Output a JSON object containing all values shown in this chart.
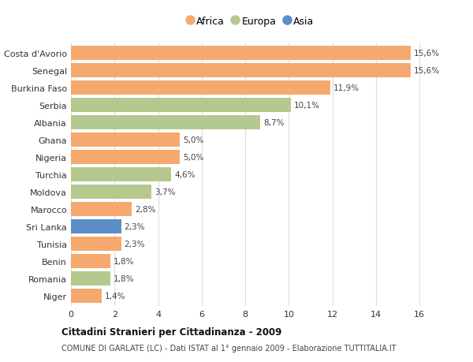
{
  "categories": [
    "Niger",
    "Romania",
    "Benin",
    "Tunisia",
    "Sri Lanka",
    "Marocco",
    "Moldova",
    "Turchia",
    "Nigeria",
    "Ghana",
    "Albania",
    "Serbia",
    "Burkina Faso",
    "Senegal",
    "Costa d'Avorio"
  ],
  "values": [
    1.4,
    1.8,
    1.8,
    2.3,
    2.3,
    2.8,
    3.7,
    4.6,
    5.0,
    5.0,
    8.7,
    10.1,
    11.9,
    15.6,
    15.6
  ],
  "labels": [
    "1,4%",
    "1,8%",
    "1,8%",
    "2,3%",
    "2,3%",
    "2,8%",
    "3,7%",
    "4,6%",
    "5,0%",
    "5,0%",
    "8,7%",
    "10,1%",
    "11,9%",
    "15,6%",
    "15,6%"
  ],
  "colors": [
    "#f5a96e",
    "#b5c98e",
    "#f5a96e",
    "#f5a96e",
    "#5b8dc9",
    "#f5a96e",
    "#b5c98e",
    "#b5c98e",
    "#f5a96e",
    "#f5a96e",
    "#b5c98e",
    "#b5c98e",
    "#f5a96e",
    "#f5a96e",
    "#f5a96e"
  ],
  "legend_labels": [
    "Africa",
    "Europa",
    "Asia"
  ],
  "legend_colors": [
    "#f5a96e",
    "#b5c98e",
    "#5b8dc9"
  ],
  "title": "Cittadini Stranieri per Cittadinanza - 2009",
  "subtitle": "COMUNE DI GARLATE (LC) - Dati ISTAT al 1° gennaio 2009 - Elaborazione TUTTITALIA.IT",
  "xlim": [
    0,
    16.5
  ],
  "xticks": [
    0,
    2,
    4,
    6,
    8,
    10,
    12,
    14,
    16
  ],
  "background_color": "#ffffff",
  "bar_height": 0.82,
  "grid_color": "#dddddd"
}
